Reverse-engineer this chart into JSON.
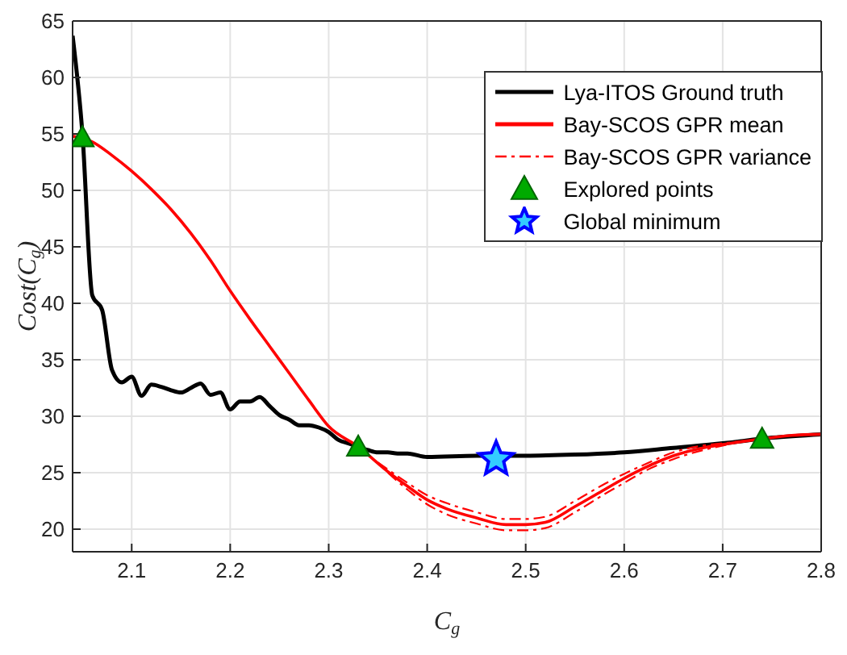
{
  "chart_data": {
    "type": "line",
    "xlabel": "C$_{g}$",
    "ylabel": "Cost(C$_{g}$)",
    "xlim": [
      2.04,
      2.8
    ],
    "xticks": [
      2.1,
      2.2,
      2.3,
      2.4,
      2.5,
      2.6,
      2.7,
      2.8
    ],
    "ylim": [
      18,
      65
    ],
    "yticks": [
      20,
      25,
      30,
      35,
      40,
      45,
      50,
      55,
      60,
      65
    ],
    "grid": true,
    "legend": "top right",
    "series": [
      {
        "name": "Lya-ITOS Ground truth",
        "color": "#000000",
        "line_style": "solid",
        "x": [
          2.04,
          2.05,
          2.06,
          2.07,
          2.08,
          2.09,
          2.1,
          2.11,
          2.12,
          2.13,
          2.14,
          2.15,
          2.16,
          2.17,
          2.18,
          2.19,
          2.2,
          2.21,
          2.22,
          2.23,
          2.24,
          2.25,
          2.26,
          2.27,
          2.28,
          2.29,
          2.3,
          2.31,
          2.32,
          2.33,
          2.34,
          2.35,
          2.36,
          2.37,
          2.38,
          2.4,
          2.45,
          2.5,
          2.55,
          2.6,
          2.65,
          2.7,
          2.75,
          2.8
        ],
        "values": [
          63.7,
          55,
          40.7,
          39.4,
          34.1,
          33,
          33.5,
          31.8,
          32.8,
          32.6,
          32.3,
          32.1,
          32.5,
          32.9,
          31.9,
          32.1,
          30.6,
          31.3,
          31.3,
          31.7,
          30.9,
          30.1,
          29.7,
          29.2,
          29.2,
          29,
          28.6,
          27.9,
          27.6,
          27.3,
          27,
          26.8,
          26.8,
          26.7,
          26.7,
          26.4,
          26.5,
          26.5,
          26.6,
          26.8,
          27.2,
          27.6,
          28.1,
          28.4
        ]
      },
      {
        "name": "Bay-SCOS GPR mean",
        "color": "#ff0000",
        "line_style": "solid",
        "x": [
          2.04,
          2.06,
          2.08,
          2.1,
          2.12,
          2.14,
          2.16,
          2.18,
          2.2,
          2.22,
          2.24,
          2.26,
          2.28,
          2.3,
          2.33,
          2.36,
          2.38,
          2.4,
          2.42,
          2.45,
          2.48,
          2.5,
          2.52,
          2.55,
          2.58,
          2.6,
          2.62,
          2.65,
          2.68,
          2.7,
          2.74,
          2.77,
          2.8
        ],
        "values": [
          54.8,
          54.3,
          53.1,
          51.7,
          50.1,
          48.3,
          46.2,
          43.8,
          41.1,
          38.6,
          36.2,
          33.8,
          31.4,
          29.1,
          27.3,
          25.1,
          23.8,
          22.6,
          21.8,
          21,
          20.4,
          20.4,
          20.6,
          22,
          23.5,
          24.5,
          25.4,
          26.5,
          27.2,
          27.5,
          28,
          28.3,
          28.4
        ]
      },
      {
        "name": "Bay-SCOS GPR variance",
        "color": "#ff0000",
        "line_style": "dashed",
        "x": [
          2.35,
          2.38,
          2.4,
          2.42,
          2.45,
          2.48,
          2.5,
          2.52,
          2.55,
          2.58,
          2.6,
          2.62,
          2.65,
          2.68,
          2.7,
          2.74
        ],
        "values": [
          25.9,
          24.1,
          23,
          22.3,
          21.5,
          20.9,
          20.9,
          21.1,
          22.5,
          24,
          24.9,
          25.7,
          26.8,
          27.4,
          27.6,
          28
        ]
      },
      {
        "color": "#ff0000",
        "line_style": "dashed",
        "x": [
          2.36,
          2.38,
          2.4,
          2.42,
          2.45,
          2.48,
          2.5,
          2.52,
          2.55,
          2.58,
          2.6,
          2.62,
          2.65,
          2.68,
          2.7,
          2.73
        ],
        "values": [
          25.0,
          23.5,
          22.2,
          21.3,
          20.5,
          19.9,
          19.9,
          20.1,
          21.5,
          23.1,
          24.1,
          25.1,
          26.2,
          27,
          27.4,
          27.9
        ]
      },
      {
        "name": "Explored points",
        "type": "scatter",
        "color": "#00aa00",
        "marker": "triangle",
        "x": [
          2.05,
          2.33,
          2.74
        ],
        "values": [
          54.7,
          27.3,
          28
        ]
      },
      {
        "name": "Global minimum",
        "type": "scatter",
        "color": "#0000ff",
        "marker": "star",
        "x": [
          2.47
        ],
        "values": [
          26.2
        ]
      }
    ]
  }
}
